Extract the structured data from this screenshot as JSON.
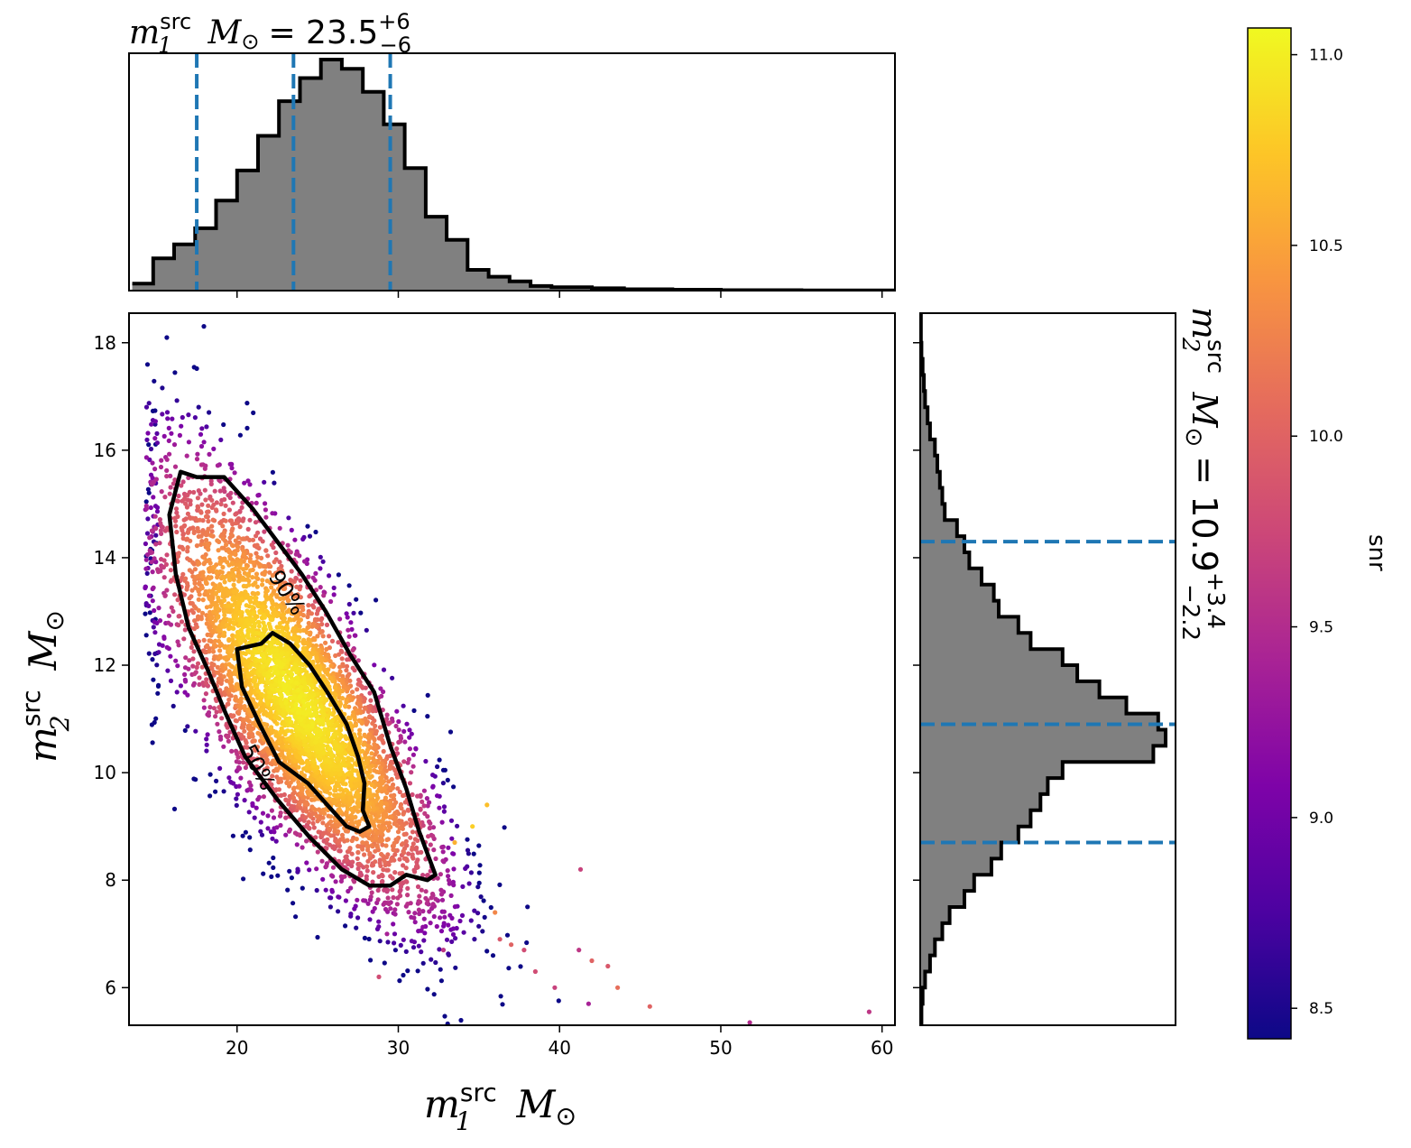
{
  "chart_data": {
    "type": "scatter",
    "top_histogram": {
      "title": {
        "sym": "m",
        "sup": "src",
        "sub": "1",
        "unit": "M",
        "unit_sub": "⊙",
        "eq": "= 23.5",
        "plus": "+6",
        "minus": "−6"
      },
      "median": 23.5,
      "lower": 17.5,
      "upper": 29.5,
      "bin_edges": [
        13.5,
        14.8,
        16.1,
        17.4,
        18.7,
        20.0,
        21.3,
        22.6,
        23.9,
        25.2,
        26.5,
        27.8,
        29.1,
        30.4,
        31.7,
        33.0,
        34.3,
        35.6,
        36.9,
        38.2,
        39.5,
        42,
        44,
        47,
        50,
        55,
        61
      ],
      "counts": [
        3,
        14,
        20,
        27,
        39,
        52,
        67,
        82,
        92,
        100,
        96,
        86,
        72,
        53,
        32,
        22,
        9,
        6,
        4,
        2,
        1.5,
        1,
        0.6,
        0.4,
        0.2,
        0.1
      ]
    },
    "scatter": {
      "xlabel": {
        "sym": "m",
        "sup": "src",
        "sub": "1",
        "unit": "M",
        "unit_sub": "⊙"
      },
      "ylabel": {
        "sym": "m",
        "sup": "src",
        "sub": "2",
        "unit": "M",
        "unit_sub": "⊙"
      },
      "xlim": [
        13.3,
        60.8
      ],
      "ylim": [
        5.3,
        18.55
      ],
      "xticks": [
        20,
        30,
        40,
        50,
        60
      ],
      "yticks": [
        6,
        8,
        10,
        12,
        14,
        16,
        18
      ],
      "colormap": "plasma",
      "color_label": "snr",
      "color_range": [
        8.42,
        11.07
      ],
      "color_ticks": [
        8.5,
        9.0,
        9.5,
        10.0,
        10.5,
        11.0
      ],
      "contours": [
        {
          "label": "90%",
          "points": [
            [
              16.5,
              15.6
            ],
            [
              17.5,
              15.5
            ],
            [
              19.2,
              15.5
            ],
            [
              21,
              14.9
            ],
            [
              22.5,
              14.3
            ],
            [
              24,
              13.7
            ],
            [
              25.5,
              13.0
            ],
            [
              27,
              12.2
            ],
            [
              28.5,
              11.5
            ],
            [
              29.5,
              10.5
            ],
            [
              30.5,
              9.7
            ],
            [
              31.3,
              8.9
            ],
            [
              32.3,
              8.1
            ],
            [
              31.8,
              8.0
            ],
            [
              30.5,
              8.1
            ],
            [
              29.5,
              7.9
            ],
            [
              28.2,
              7.9
            ],
            [
              26.5,
              8.2
            ],
            [
              24.5,
              8.8
            ],
            [
              22.5,
              9.5
            ],
            [
              20.5,
              10.3
            ],
            [
              19.3,
              11.1
            ],
            [
              18.2,
              11.9
            ],
            [
              17.0,
              12.7
            ],
            [
              16.2,
              13.7
            ],
            [
              15.8,
              14.8
            ],
            [
              16.5,
              15.6
            ]
          ]
        },
        {
          "label": "50%",
          "points": [
            [
              20.0,
              12.3
            ],
            [
              21.5,
              12.4
            ],
            [
              22.2,
              12.6
            ],
            [
              23.3,
              12.4
            ],
            [
              24.5,
              12.0
            ],
            [
              25.6,
              11.5
            ],
            [
              26.8,
              10.9
            ],
            [
              27.5,
              10.3
            ],
            [
              27.9,
              9.8
            ],
            [
              27.8,
              9.3
            ],
            [
              28.2,
              9.0
            ],
            [
              27.6,
              8.9
            ],
            [
              26.8,
              9.0
            ],
            [
              25.6,
              9.4
            ],
            [
              24.4,
              9.8
            ],
            [
              22.6,
              10.2
            ],
            [
              21.4,
              10.9
            ],
            [
              20.3,
              11.6
            ],
            [
              20.0,
              12.3
            ]
          ]
        }
      ]
    },
    "right_histogram": {
      "title": {
        "sym": "m",
        "sup": "src",
        "sub": "2",
        "unit": "M",
        "unit_sub": "⊙",
        "eq": "= 10.9",
        "plus": "+3.4",
        "minus": "−2.2"
      },
      "median": 10.9,
      "lower": 8.7,
      "upper": 14.3,
      "bin_edges": [
        5.3,
        5.7,
        6.0,
        6.3,
        6.6,
        6.9,
        7.2,
        7.5,
        7.8,
        8.1,
        8.4,
        8.7,
        9.0,
        9.3,
        9.6,
        9.9,
        10.2,
        10.5,
        10.8,
        11.1,
        11.4,
        11.7,
        12.0,
        12.3,
        12.6,
        12.9,
        13.2,
        13.5,
        13.8,
        14.1,
        14.4,
        14.7,
        15.0,
        15.3,
        15.6,
        15.9,
        16.2,
        16.5,
        16.8,
        17.1,
        17.4,
        17.7,
        18.0,
        18.55
      ],
      "counts": [
        0.5,
        1,
        2,
        4,
        6,
        9,
        12,
        18,
        22,
        29,
        33,
        40,
        45,
        49,
        52,
        58,
        95,
        100,
        97,
        84,
        73,
        64,
        58,
        45,
        40,
        32,
        30,
        25,
        20,
        18,
        15,
        10,
        9,
        8,
        7,
        6,
        4,
        3,
        2,
        1.5,
        1,
        0.5,
        0.3
      ]
    }
  }
}
